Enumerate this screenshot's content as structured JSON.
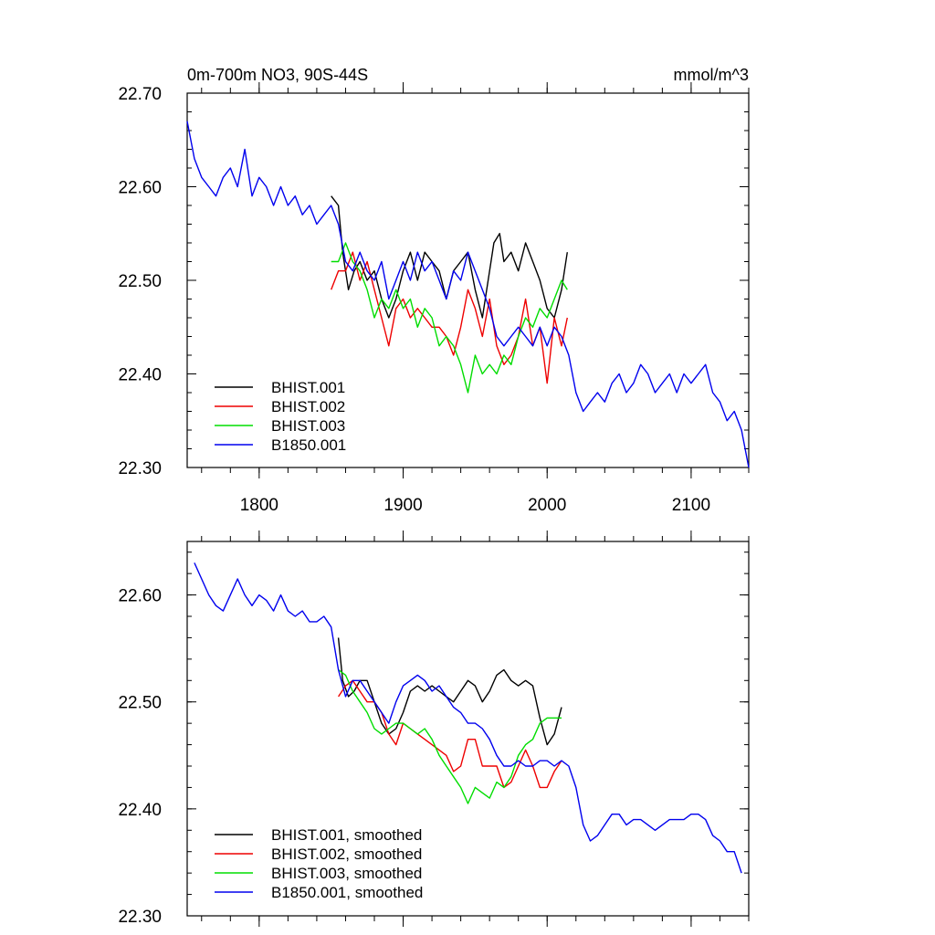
{
  "chart_data": [
    {
      "type": "line",
      "title": "0m-700m NO3, 90S-44S",
      "units": "mmol/m^3",
      "xlim": [
        1750,
        2140
      ],
      "ylim": [
        22.3,
        22.7
      ],
      "xticks": [
        1800,
        1900,
        2000,
        2100
      ],
      "xtick_labels": [
        "1800",
        "1900",
        "2000",
        "2100"
      ],
      "yticks": [
        22.3,
        22.4,
        22.5,
        22.6,
        22.7
      ],
      "ytick_labels": [
        "22.30",
        "22.40",
        "22.50",
        "22.60",
        "22.70"
      ],
      "legend_position": "bottom-left",
      "series": [
        {
          "name": "BHIST.001",
          "color": "#000000",
          "x": [
            1850,
            1855,
            1858,
            1862,
            1866,
            1870,
            1875,
            1880,
            1885,
            1890,
            1895,
            1900,
            1905,
            1910,
            1915,
            1920,
            1925,
            1930,
            1935,
            1940,
            1945,
            1950,
            1955,
            1960,
            1963,
            1967,
            1970,
            1975,
            1980,
            1985,
            1990,
            1995,
            2000,
            2005,
            2010,
            2014
          ],
          "y": [
            22.59,
            22.58,
            22.53,
            22.49,
            22.51,
            22.52,
            22.5,
            22.51,
            22.48,
            22.46,
            22.48,
            22.51,
            22.53,
            22.5,
            22.53,
            22.52,
            22.51,
            22.48,
            22.51,
            22.52,
            22.53,
            22.49,
            22.46,
            22.51,
            22.54,
            22.55,
            22.52,
            22.53,
            22.51,
            22.54,
            22.52,
            22.5,
            22.47,
            22.46,
            22.49,
            22.53
          ]
        },
        {
          "name": "BHIST.002",
          "color": "#ee0000",
          "x": [
            1850,
            1855,
            1860,
            1865,
            1870,
            1875,
            1880,
            1885,
            1890,
            1895,
            1900,
            1905,
            1910,
            1915,
            1920,
            1925,
            1930,
            1935,
            1940,
            1945,
            1950,
            1955,
            1960,
            1965,
            1970,
            1975,
            1980,
            1985,
            1990,
            1995,
            2000,
            2005,
            2010,
            2014
          ],
          "y": [
            22.49,
            22.51,
            22.51,
            22.53,
            22.5,
            22.52,
            22.49,
            22.46,
            22.43,
            22.47,
            22.48,
            22.46,
            22.47,
            22.46,
            22.45,
            22.45,
            22.44,
            22.42,
            22.45,
            22.49,
            22.47,
            22.44,
            22.48,
            22.43,
            22.41,
            22.42,
            22.44,
            22.48,
            22.43,
            22.45,
            22.39,
            22.46,
            22.43,
            22.46
          ]
        },
        {
          "name": "BHIST.003",
          "color": "#00dd00",
          "x": [
            1850,
            1855,
            1860,
            1865,
            1870,
            1875,
            1880,
            1885,
            1890,
            1895,
            1900,
            1905,
            1910,
            1915,
            1920,
            1925,
            1930,
            1935,
            1940,
            1945,
            1950,
            1955,
            1960,
            1965,
            1970,
            1975,
            1980,
            1985,
            1990,
            1995,
            2000,
            2005,
            2010,
            2014
          ],
          "y": [
            22.52,
            22.52,
            22.54,
            22.52,
            22.51,
            22.49,
            22.46,
            22.48,
            22.47,
            22.49,
            22.47,
            22.48,
            22.45,
            22.47,
            22.46,
            22.43,
            22.44,
            22.43,
            22.41,
            22.38,
            22.42,
            22.4,
            22.41,
            22.4,
            22.42,
            22.41,
            22.44,
            22.46,
            22.45,
            22.47,
            22.46,
            22.48,
            22.5,
            22.49
          ]
        },
        {
          "name": "B1850.001",
          "color": "#0000ee",
          "x": [
            1750,
            1755,
            1760,
            1765,
            1770,
            1775,
            1780,
            1785,
            1790,
            1795,
            1800,
            1805,
            1810,
            1815,
            1820,
            1825,
            1830,
            1835,
            1840,
            1845,
            1850,
            1855,
            1860,
            1865,
            1870,
            1875,
            1880,
            1885,
            1890,
            1895,
            1900,
            1905,
            1910,
            1915,
            1920,
            1925,
            1930,
            1935,
            1940,
            1945,
            1950,
            1955,
            1960,
            1965,
            1970,
            1975,
            1980,
            1985,
            1990,
            1995,
            2000,
            2005,
            2010,
            2015,
            2020,
            2025,
            2030,
            2035,
            2040,
            2045,
            2050,
            2055,
            2060,
            2065,
            2070,
            2075,
            2080,
            2085,
            2090,
            2095,
            2100,
            2105,
            2110,
            2115,
            2120,
            2125,
            2130,
            2135,
            2140
          ],
          "y": [
            22.67,
            22.63,
            22.61,
            22.6,
            22.59,
            22.61,
            22.62,
            22.6,
            22.64,
            22.59,
            22.61,
            22.6,
            22.58,
            22.6,
            22.58,
            22.59,
            22.57,
            22.58,
            22.56,
            22.57,
            22.58,
            22.56,
            22.52,
            22.51,
            22.53,
            22.51,
            22.5,
            22.52,
            22.48,
            22.5,
            22.52,
            22.5,
            22.53,
            22.51,
            22.52,
            22.5,
            22.48,
            22.51,
            22.5,
            22.53,
            22.51,
            22.49,
            22.47,
            22.44,
            22.43,
            22.44,
            22.45,
            22.44,
            22.43,
            22.45,
            22.43,
            22.45,
            22.44,
            22.42,
            22.38,
            22.36,
            22.37,
            22.38,
            22.37,
            22.39,
            22.4,
            22.38,
            22.39,
            22.41,
            22.4,
            22.38,
            22.39,
            22.4,
            22.38,
            22.4,
            22.39,
            22.4,
            22.41,
            22.38,
            22.37,
            22.35,
            22.36,
            22.34,
            22.3
          ]
        }
      ]
    },
    {
      "type": "line",
      "xlim": [
        1750,
        2140
      ],
      "ylim": [
        22.3,
        22.65
      ],
      "xticks": [
        1800,
        1900,
        2000,
        2100
      ],
      "yticks": [
        22.3,
        22.4,
        22.5,
        22.6
      ],
      "ytick_labels": [
        "22.30",
        "22.40",
        "22.50",
        "22.60"
      ],
      "legend_position": "bottom-left",
      "series": [
        {
          "name": "BHIST.001, smoothed",
          "color": "#000000",
          "x": [
            1855,
            1858,
            1862,
            1866,
            1870,
            1875,
            1880,
            1885,
            1890,
            1895,
            1900,
            1905,
            1910,
            1915,
            1920,
            1925,
            1930,
            1935,
            1940,
            1945,
            1950,
            1955,
            1960,
            1965,
            1970,
            1975,
            1980,
            1985,
            1990,
            1995,
            2000,
            2005,
            2010
          ],
          "y": [
            22.56,
            22.52,
            22.505,
            22.51,
            22.52,
            22.52,
            22.5,
            22.48,
            22.47,
            22.475,
            22.49,
            22.51,
            22.515,
            22.51,
            22.515,
            22.51,
            22.505,
            22.5,
            22.51,
            22.52,
            22.515,
            22.5,
            22.51,
            22.525,
            22.53,
            22.52,
            22.515,
            22.52,
            22.515,
            22.485,
            22.46,
            22.47,
            22.495
          ]
        },
        {
          "name": "BHIST.002, smoothed",
          "color": "#ee0000",
          "x": [
            1855,
            1860,
            1865,
            1870,
            1875,
            1880,
            1885,
            1890,
            1895,
            1900,
            1905,
            1910,
            1915,
            1920,
            1925,
            1930,
            1935,
            1940,
            1945,
            1950,
            1955,
            1960,
            1965,
            1970,
            1975,
            1980,
            1985,
            1990,
            1995,
            2000,
            2005,
            2010
          ],
          "y": [
            22.505,
            22.515,
            22.52,
            22.51,
            22.5,
            22.5,
            22.49,
            22.47,
            22.46,
            22.48,
            22.475,
            22.47,
            22.465,
            22.46,
            22.455,
            22.45,
            22.435,
            22.44,
            22.465,
            22.465,
            22.44,
            22.44,
            22.44,
            22.42,
            22.425,
            22.44,
            22.455,
            22.44,
            22.42,
            22.42,
            22.435,
            22.445
          ]
        },
        {
          "name": "BHIST.003, smoothed",
          "color": "#00dd00",
          "x": [
            1855,
            1860,
            1865,
            1870,
            1875,
            1880,
            1885,
            1890,
            1895,
            1900,
            1905,
            1910,
            1915,
            1920,
            1925,
            1930,
            1935,
            1940,
            1945,
            1950,
            1955,
            1960,
            1965,
            1970,
            1975,
            1980,
            1985,
            1990,
            1995,
            2000,
            2005,
            2010
          ],
          "y": [
            22.53,
            22.525,
            22.51,
            22.5,
            22.49,
            22.475,
            22.47,
            22.475,
            22.48,
            22.48,
            22.475,
            22.47,
            22.475,
            22.465,
            22.45,
            22.44,
            22.43,
            22.42,
            22.405,
            22.42,
            22.415,
            22.41,
            22.425,
            22.42,
            22.43,
            22.45,
            22.46,
            22.465,
            22.48,
            22.485,
            22.485,
            22.485
          ]
        },
        {
          "name": "B1850.001, smoothed",
          "color": "#0000ee",
          "x": [
            1755,
            1760,
            1765,
            1770,
            1775,
            1780,
            1785,
            1790,
            1795,
            1800,
            1805,
            1810,
            1815,
            1820,
            1825,
            1830,
            1835,
            1840,
            1845,
            1850,
            1855,
            1860,
            1865,
            1870,
            1875,
            1880,
            1885,
            1890,
            1895,
            1900,
            1905,
            1910,
            1915,
            1920,
            1925,
            1930,
            1935,
            1940,
            1945,
            1950,
            1955,
            1960,
            1965,
            1970,
            1975,
            1980,
            1985,
            1990,
            1995,
            2000,
            2005,
            2010,
            2015,
            2020,
            2025,
            2030,
            2035,
            2040,
            2045,
            2050,
            2055,
            2060,
            2065,
            2070,
            2075,
            2080,
            2085,
            2090,
            2095,
            2100,
            2105,
            2110,
            2115,
            2120,
            2125,
            2130,
            2135
          ],
          "y": [
            22.63,
            22.615,
            22.6,
            22.59,
            22.585,
            22.6,
            22.615,
            22.6,
            22.59,
            22.6,
            22.595,
            22.585,
            22.6,
            22.585,
            22.58,
            22.585,
            22.575,
            22.575,
            22.58,
            22.57,
            22.53,
            22.505,
            22.52,
            22.52,
            22.51,
            22.5,
            22.49,
            22.48,
            22.5,
            22.515,
            22.52,
            22.525,
            22.52,
            22.51,
            22.515,
            22.505,
            22.495,
            22.49,
            22.48,
            22.48,
            22.475,
            22.465,
            22.45,
            22.44,
            22.44,
            22.445,
            22.44,
            22.44,
            22.445,
            22.445,
            22.44,
            22.445,
            22.44,
            22.42,
            22.385,
            22.37,
            22.375,
            22.385,
            22.395,
            22.395,
            22.385,
            22.39,
            22.39,
            22.385,
            22.38,
            22.385,
            22.39,
            22.39,
            22.39,
            22.395,
            22.395,
            22.39,
            22.375,
            22.37,
            22.36,
            22.36,
            22.34
          ]
        }
      ]
    }
  ]
}
